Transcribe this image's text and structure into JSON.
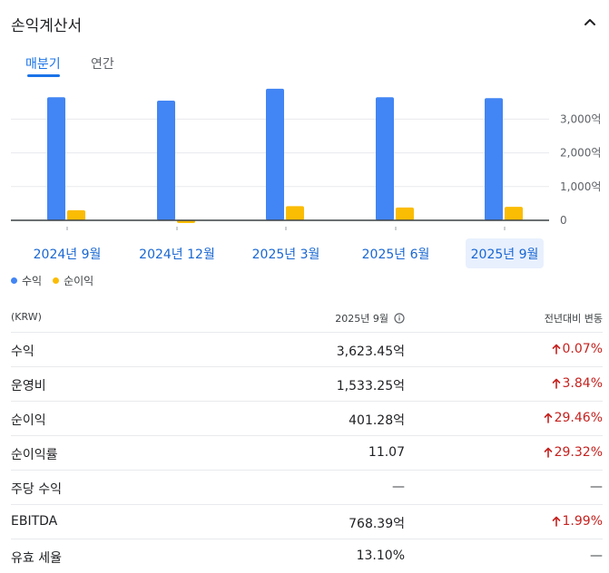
{
  "header": {
    "title": "손익계산서"
  },
  "tabs": [
    {
      "label": "매분기",
      "active": true
    },
    {
      "label": "연간",
      "active": false
    }
  ],
  "chart_data": {
    "type": "bar",
    "categories": [
      "2024년 9월",
      "2024년 12월",
      "2025년 3월",
      "2025년 6월",
      "2025년 9월"
    ],
    "series": [
      {
        "name": "수익",
        "color": "#4285f4",
        "values": [
          3650,
          3550,
          3900,
          3650,
          3623.45
        ]
      },
      {
        "name": "순이익",
        "color": "#fbbc04",
        "values": [
          300,
          -80,
          420,
          380,
          401.28
        ]
      }
    ],
    "y_ticks": [
      {
        "value": 3000,
        "label": "3,000억"
      },
      {
        "value": 2000,
        "label": "2,000억"
      },
      {
        "value": 1000,
        "label": "1,000억"
      },
      {
        "value": 0,
        "label": "0"
      }
    ],
    "ylim": [
      -100,
      4000
    ],
    "selected_category": "2025년 9월",
    "legend_position": "bottom-left"
  },
  "legend": [
    {
      "label": "수익",
      "color": "#4285f4"
    },
    {
      "label": "순이익",
      "color": "#fbbc04"
    }
  ],
  "table": {
    "headers": {
      "unit": "(KRW)",
      "period": "2025년 9월",
      "change": "전년대비 변동"
    },
    "rows": [
      {
        "label": "수익",
        "value": "3,623.45억",
        "change": "0.07%",
        "trend": "up"
      },
      {
        "label": "운영비",
        "value": "1,533.25억",
        "change": "3.84%",
        "trend": "up"
      },
      {
        "label": "순이익",
        "value": "401.28억",
        "change": "29.46%",
        "trend": "up"
      },
      {
        "label": "순이익률",
        "value": "11.07",
        "change": "29.32%",
        "trend": "up"
      },
      {
        "label": "주당 수익",
        "value": "—",
        "change": "—",
        "trend": "none"
      },
      {
        "label": "EBITDA",
        "value": "768.39억",
        "change": "1.99%",
        "trend": "up"
      },
      {
        "label": "유효 세율",
        "value": "13.10%",
        "change": "—",
        "trend": "none"
      }
    ]
  }
}
